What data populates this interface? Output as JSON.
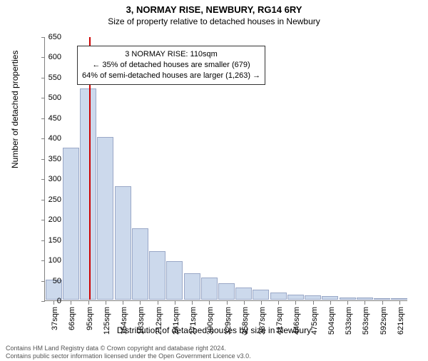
{
  "title_main": "3, NORMAY RISE, NEWBURY, RG14 6RY",
  "title_sub": "Size of property relative to detached houses in Newbury",
  "ylabel": "Number of detached properties",
  "xlabel": "Distribution of detached houses by size in Newbury",
  "chart": {
    "type": "histogram",
    "ylim": [
      0,
      650
    ],
    "ytick_step": 50,
    "background_color": "#ffffff",
    "bar_fill": "#ccd9ec",
    "bar_stroke": "#9aa8c7",
    "axis_color": "#808080",
    "marker_color": "#cc0000",
    "x_categories": [
      "37sqm",
      "66sqm",
      "95sqm",
      "125sqm",
      "154sqm",
      "183sqm",
      "212sqm",
      "241sqm",
      "271sqm",
      "300sqm",
      "329sqm",
      "358sqm",
      "387sqm",
      "417sqm",
      "446sqm",
      "475sqm",
      "504sqm",
      "533sqm",
      "563sqm",
      "592sqm",
      "621sqm"
    ],
    "values": [
      50,
      375,
      520,
      400,
      280,
      175,
      120,
      95,
      65,
      55,
      40,
      30,
      25,
      18,
      12,
      10,
      8,
      6,
      5,
      3,
      2
    ],
    "bar_rel_width": 0.95,
    "marker_position": 2.55
  },
  "annotation": {
    "line1": "3 NORMAY RISE: 110sqm",
    "line2": "← 35% of detached houses are smaller (679)",
    "line3": "64% of semi-detached houses are larger (1,263) →"
  },
  "footer": {
    "line1": "Contains HM Land Registry data © Crown copyright and database right 2024.",
    "line2": "Contains public sector information licensed under the Open Government Licence v3.0."
  }
}
